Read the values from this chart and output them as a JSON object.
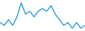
{
  "x": [
    0,
    1,
    2,
    3,
    4,
    5,
    6,
    7,
    8,
    9,
    10,
    11,
    12,
    13,
    14,
    15,
    16,
    17,
    18,
    19,
    20
  ],
  "y": [
    3,
    2,
    4,
    2,
    5,
    10,
    6,
    7,
    5,
    7,
    8,
    7,
    9,
    6,
    4,
    2,
    3,
    1,
    3,
    1,
    2
  ],
  "line_color": "#2e9fd4",
  "linewidth": 1.1,
  "background_color": "#ffffff",
  "ylim": [
    0,
    11
  ],
  "xlim": [
    0,
    20
  ]
}
